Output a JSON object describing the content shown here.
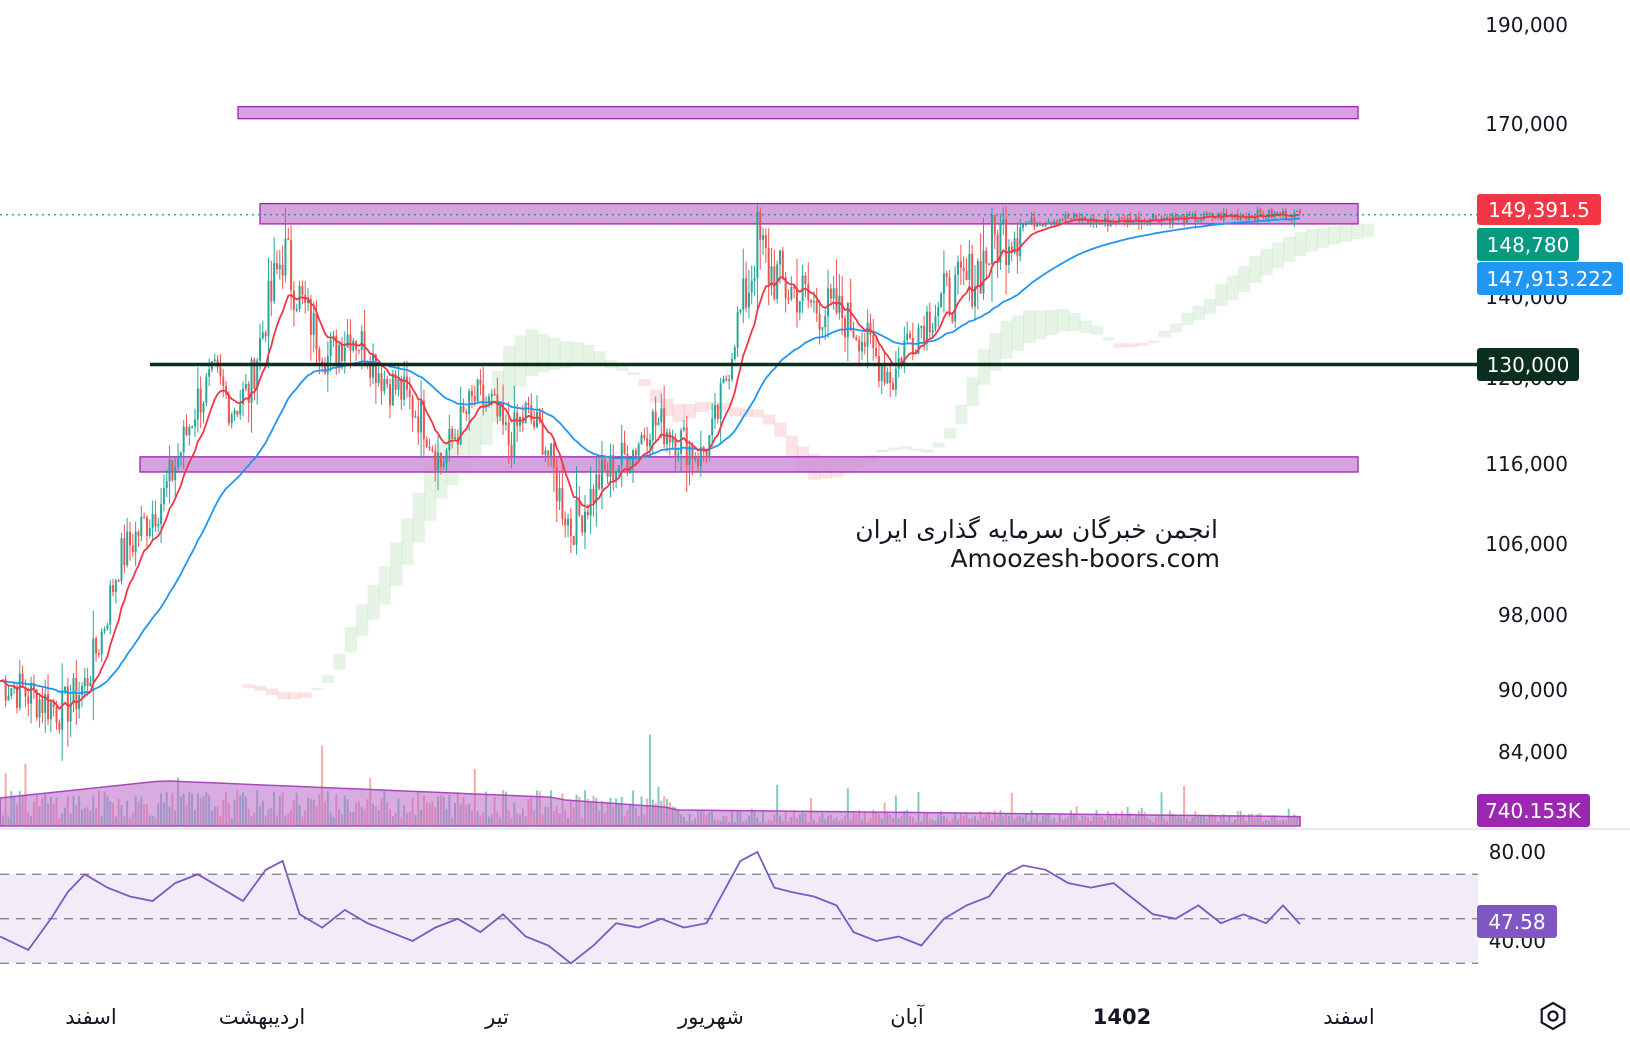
{
  "chart_data": {
    "type": "candlestick",
    "price_axis": {
      "ticks": [
        "190,000",
        "170,000",
        "140,000",
        "128,000",
        "116,000",
        "106,000",
        "98,000",
        "90,000",
        "84,000"
      ],
      "tick_values": [
        190000,
        170000,
        140000,
        128000,
        116000,
        106000,
        98000,
        90000,
        84000
      ]
    },
    "time_axis": {
      "labels": [
        "اسفند",
        "اردیبهشت",
        "تیر",
        "شهریور",
        "آبان",
        "1402",
        "اسفند"
      ]
    },
    "price_series": {
      "start": 91000,
      "path": [
        [
          0,
          91000
        ],
        [
          22,
          88000
        ],
        [
          30,
          90500
        ],
        [
          36,
          96000
        ],
        [
          42,
          104000
        ],
        [
          50,
          108000
        ],
        [
          58,
          112000
        ],
        [
          64,
          118000
        ],
        [
          70,
          125000
        ],
        [
          76,
          128000
        ],
        [
          82,
          124000
        ],
        [
          88,
          126000
        ],
        [
          94,
          137000
        ],
        [
          100,
          145000
        ],
        [
          108,
          138000
        ],
        [
          116,
          131000
        ],
        [
          124,
          135000
        ],
        [
          130,
          132000
        ],
        [
          136,
          128000
        ],
        [
          142,
          126000
        ],
        [
          150,
          122000
        ],
        [
          156,
          116000
        ],
        [
          162,
          121000
        ],
        [
          168,
          125000
        ],
        [
          174,
          124000
        ],
        [
          180,
          119000
        ],
        [
          186,
          123000
        ],
        [
          192,
          120000
        ],
        [
          198,
          112000
        ],
        [
          202,
          108000
        ],
        [
          206,
          110000
        ],
        [
          212,
          114000
        ],
        [
          218,
          116000
        ],
        [
          224,
          118000
        ],
        [
          230,
          122000
        ],
        [
          236,
          121000
        ],
        [
          242,
          119000
        ],
        [
          248,
          117000
        ],
        [
          252,
          120000
        ],
        [
          256,
          126000
        ],
        [
          260,
          135000
        ],
        [
          264,
          140000
        ],
        [
          268,
          146000
        ],
        [
          272,
          143000
        ],
        [
          278,
          141000
        ],
        [
          284,
          140000
        ],
        [
          290,
          138000
        ],
        [
          296,
          138000
        ],
        [
          304,
          135000
        ],
        [
          310,
          131000
        ],
        [
          316,
          128000
        ],
        [
          320,
          133000
        ],
        [
          326,
          136000
        ],
        [
          332,
          139000
        ],
        [
          338,
          140000
        ],
        [
          344,
          142000
        ],
        [
          348,
          144000
        ],
        [
          352,
          146000
        ],
        [
          358,
          147500
        ],
        [
          366,
          148000
        ],
        [
          376,
          148500
        ],
        [
          390,
          148000
        ],
        [
          400,
          148200
        ],
        [
          410,
          148500
        ],
        [
          420,
          148300
        ],
        [
          430,
          148600
        ],
        [
          440,
          148700
        ],
        [
          450,
          148800
        ],
        [
          460,
          148780
        ]
      ]
    },
    "last_price": "148,780",
    "high_label": "149,391.5",
    "ma_label": "147,913.222",
    "level_label": "130,000",
    "volume_label": "740.153K",
    "horizontal_level": 130000,
    "zones": [
      {
        "low": 171500,
        "high": 173500
      },
      {
        "low": 147800,
        "high": 150700
      },
      {
        "low": 115000,
        "high": 117000
      }
    ],
    "rsi": {
      "ticks": [
        "80.00",
        "40.00"
      ],
      "tick_values": [
        80,
        40
      ],
      "bands": [
        70,
        30
      ],
      "last": "47.58",
      "path": [
        [
          0,
          42
        ],
        [
          10,
          36
        ],
        [
          18,
          50
        ],
        [
          24,
          62
        ],
        [
          30,
          70
        ],
        [
          38,
          64
        ],
        [
          46,
          60
        ],
        [
          54,
          58
        ],
        [
          62,
          66
        ],
        [
          70,
          70
        ],
        [
          78,
          64
        ],
        [
          86,
          58
        ],
        [
          94,
          72
        ],
        [
          100,
          76
        ],
        [
          106,
          52
        ],
        [
          114,
          46
        ],
        [
          122,
          54
        ],
        [
          130,
          48
        ],
        [
          138,
          44
        ],
        [
          146,
          40
        ],
        [
          154,
          46
        ],
        [
          162,
          50
        ],
        [
          170,
          44
        ],
        [
          178,
          52
        ],
        [
          186,
          42
        ],
        [
          194,
          38
        ],
        [
          202,
          30
        ],
        [
          210,
          38
        ],
        [
          218,
          48
        ],
        [
          226,
          46
        ],
        [
          234,
          50
        ],
        [
          242,
          46
        ],
        [
          250,
          48
        ],
        [
          256,
          62
        ],
        [
          262,
          76
        ],
        [
          268,
          80
        ],
        [
          274,
          64
        ],
        [
          280,
          62
        ],
        [
          288,
          60
        ],
        [
          296,
          56
        ],
        [
          302,
          44
        ],
        [
          310,
          40
        ],
        [
          318,
          42
        ],
        [
          326,
          38
        ],
        [
          334,
          50
        ],
        [
          342,
          56
        ],
        [
          350,
          60
        ],
        [
          356,
          70
        ],
        [
          362,
          74
        ],
        [
          370,
          72
        ],
        [
          378,
          66
        ],
        [
          386,
          64
        ],
        [
          394,
          66
        ],
        [
          400,
          60
        ],
        [
          408,
          52
        ],
        [
          416,
          50
        ],
        [
          424,
          56
        ],
        [
          432,
          48
        ],
        [
          440,
          52
        ],
        [
          448,
          48
        ],
        [
          454,
          56
        ],
        [
          460,
          47.58
        ]
      ]
    },
    "watermark": {
      "line1": "انجمن خبرگان سرمایه گذاری ایران",
      "line2": "Amoozesh-boors.com"
    },
    "colors": {
      "up": "#26a69a",
      "down": "#ef5350",
      "ma_fast": "#f23645",
      "ma_slow": "#2196f3",
      "zone_fill": "#ce93d8",
      "zone_stroke": "#9c27b0",
      "level_line": "#0b2e1e",
      "rsi_line": "#7e57c2",
      "rsi_band": "#ede7f6",
      "volume_ma": "#ba68c8",
      "badge_last": "#089981",
      "badge_high": "#f23645",
      "badge_ma": "#2196f3",
      "badge_level": "#0b2e1e",
      "badge_volume": "#9c27b0",
      "badge_rsi": "#7e57c2"
    }
  }
}
